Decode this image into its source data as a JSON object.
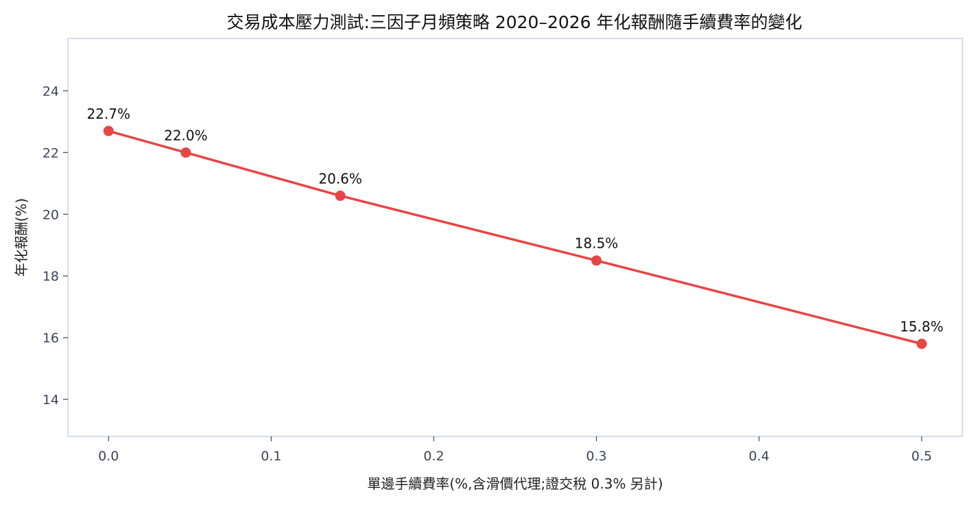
{
  "chart_data": {
    "type": "line",
    "title": "交易成本壓力測試:三因子月頻策略 2020–2026 年化報酬隨手續費率的變化",
    "xlabel": "單邊手續費率(%,含滑價代理;證交稅 0.3% 另計)",
    "ylabel": "年化報酬(%)",
    "xlim": [
      -0.025,
      0.525
    ],
    "ylim": [
      12.8,
      25.7
    ],
    "x_ticks": [
      0.0,
      0.1,
      0.2,
      0.3,
      0.4,
      0.5
    ],
    "x_tick_labels": [
      "0.0",
      "0.1",
      "0.2",
      "0.3",
      "0.4",
      "0.5"
    ],
    "y_ticks": [
      14,
      16,
      18,
      20,
      22,
      24
    ],
    "y_tick_labels": [
      "14",
      "16",
      "18",
      "20",
      "22",
      "24"
    ],
    "grid": false,
    "series": [
      {
        "color": "#e84545",
        "x": [
          0.0,
          0.0475,
          0.1425,
          0.3,
          0.5
        ],
        "y": [
          22.7,
          22.0,
          20.6,
          18.5,
          15.8
        ],
        "labels": [
          "22.7%",
          "22.0%",
          "20.6%",
          "18.5%",
          "15.8%"
        ]
      }
    ],
    "frame_color": "#c8d3e0"
  }
}
